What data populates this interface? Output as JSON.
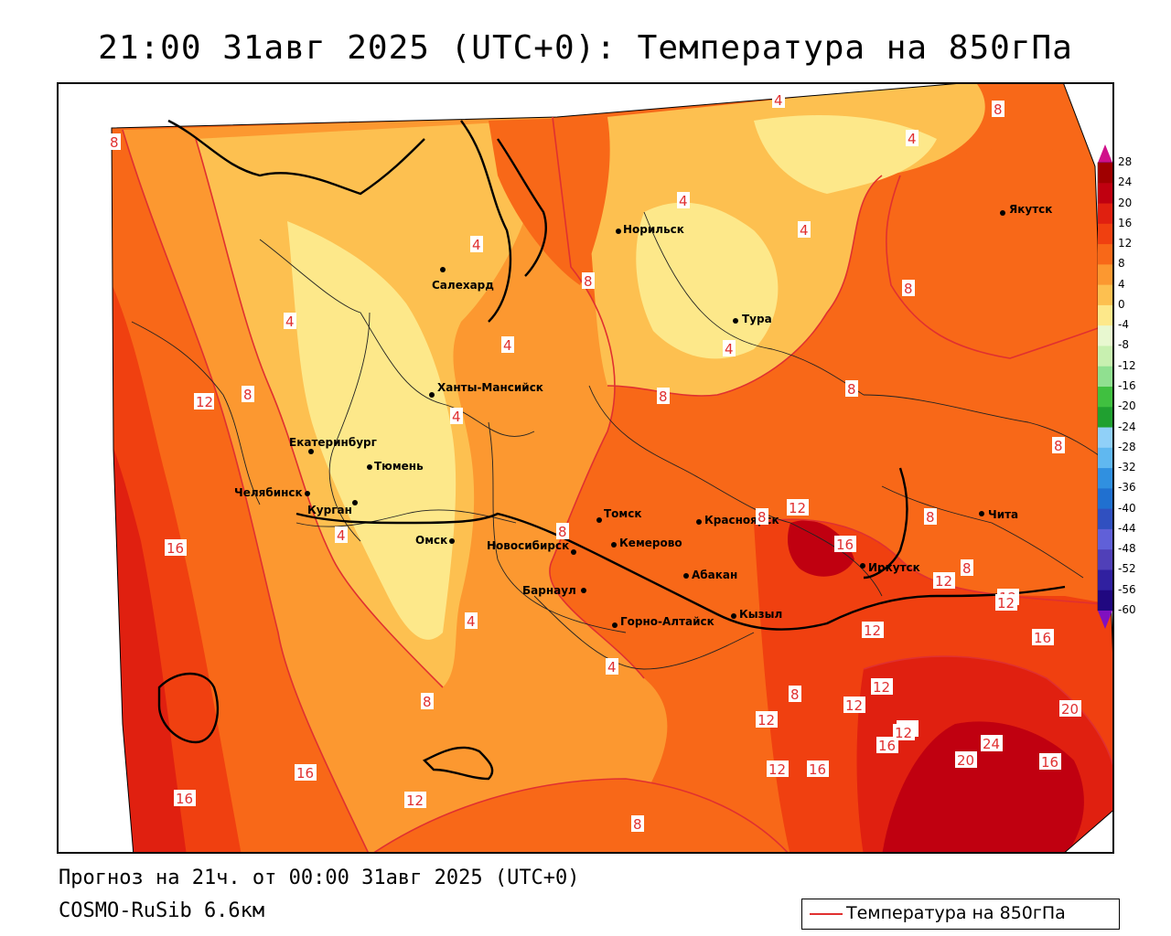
{
  "title": "21:00 31авг 2025 (UTC+0): Температура на 850гПа",
  "footer": {
    "forecast": "Прогноз на 21ч. от 00:00 31авг 2025 (UTC+0)",
    "model": "COSMO-RuSib 6.6км"
  },
  "legend": {
    "label": "Температура на 850гПа",
    "line_color": "#e03030"
  },
  "colorbar": {
    "ticks": [
      "28",
      "24",
      "20",
      "16",
      "12",
      "8",
      "4",
      "0",
      "-4",
      "-8",
      "-12",
      "-16",
      "-20",
      "-24",
      "-28",
      "-32",
      "-36",
      "-40",
      "-44",
      "-48",
      "-52",
      "-56",
      "-60"
    ],
    "colors": {
      "t28": "#a00000",
      "t24": "#c00010",
      "t20": "#e02010",
      "t16": "#f04010",
      "t12": "#f86818",
      "t8": "#fc9830",
      "t4": "#fdc050",
      "t0": "#fde88a",
      "n4": "#e8f8d0",
      "n8": "#c8f0b0",
      "n12": "#90e090",
      "n16": "#40c040",
      "n20": "#20a030",
      "n24": "#90d0f8",
      "n28": "#60b8f0",
      "n32": "#3090e0",
      "n36": "#2070d0",
      "n40": "#3050c0",
      "n44": "#6060d8",
      "n48": "#5040b8",
      "n52": "#3020a0",
      "n56": "#200880",
      "n60": "#5010a0"
    }
  },
  "cities": [
    {
      "name": "Салехард"
    },
    {
      "name": "Норильск"
    },
    {
      "name": "Якутск"
    },
    {
      "name": "Тура"
    },
    {
      "name": "Ханты-Мансийск"
    },
    {
      "name": "Екатеринбург"
    },
    {
      "name": "Тюмень"
    },
    {
      "name": "Челябинск"
    },
    {
      "name": "Курган"
    },
    {
      "name": "Омск"
    },
    {
      "name": "Томск"
    },
    {
      "name": "Красноярск"
    },
    {
      "name": "Новосибирск"
    },
    {
      "name": "Кемерово"
    },
    {
      "name": "Барнаул"
    },
    {
      "name": "Абакан"
    },
    {
      "name": "Иркутск"
    },
    {
      "name": "Чита"
    },
    {
      "name": "Горно-Алтайск"
    },
    {
      "name": "Кызыл"
    }
  ],
  "isotherm_labels": [
    "8",
    "8",
    "4",
    "4",
    "4",
    "8",
    "4",
    "4",
    "4",
    "4",
    "8",
    "4",
    "4",
    "8",
    "12",
    "8",
    "8",
    "12",
    "16",
    "4",
    "4",
    "8",
    "8",
    "16",
    "8",
    "4",
    "8",
    "12",
    "12",
    "8",
    "12",
    "12",
    "12",
    "12",
    "16",
    "20",
    "12",
    "8",
    "16",
    "16",
    "12",
    "16",
    "12",
    "16",
    "20",
    "24",
    "20",
    "16",
    "16",
    "12",
    "8",
    "8"
  ]
}
